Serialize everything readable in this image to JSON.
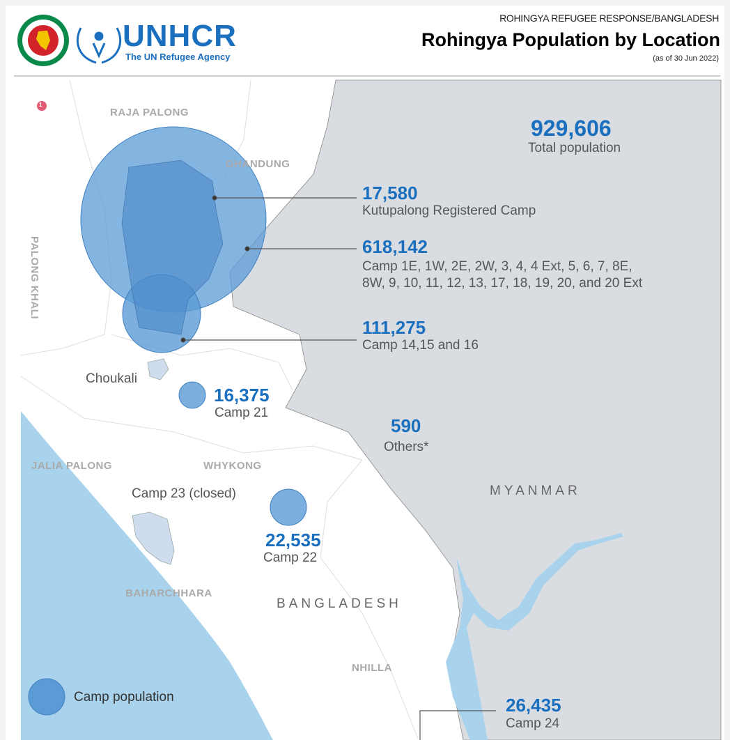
{
  "header": {
    "subtitle": "ROHINGYA REFUGEE RESPONSE/BANGLADESH",
    "title": "Rohingya Population by Location",
    "date": "(as of 30 Jun  2022)"
  },
  "logos": {
    "unhcr": "UNHCR",
    "unhcr_tagline": "The UN Refugee Agency",
    "gov_emblem": "Government of Bangladesh emblem"
  },
  "colors": {
    "accent": "#1a6fbf",
    "circle": "#5b9bd5",
    "sea": "#a9d2ec",
    "myanmar": "#d9dde1",
    "closed_camp": "#cfdcee"
  },
  "total": {
    "value": "929,606",
    "label": "Total population"
  },
  "camps": [
    {
      "value": "17,580",
      "label": "Kutupalong Registered Camp"
    },
    {
      "value": "618,142",
      "label": "Camp 1E, 1W, 2E, 2W, 3, 4, 4 Ext, 5, 6, 7, 8E,",
      "label2": "8W, 9, 10, 11, 12, 13, 17, 18, 19, 20, and 20 Ext"
    },
    {
      "value": "111,275",
      "label": "Camp 14,15 and 16"
    },
    {
      "value": "16,375",
      "label": "Camp 21"
    },
    {
      "value": "590",
      "label": "Others*"
    },
    {
      "value": "22,535",
      "label": "Camp 22"
    },
    {
      "value": "26,435",
      "label": "Camp 24"
    }
  ],
  "places": {
    "raja_palong": "RAJA PALONG",
    "ghandung": "GHANDUNG",
    "palong_khali": "PALONG KHALI",
    "choukali": "Choukali",
    "jalia_palong": "JALIA PALONG",
    "whykong": "WHYKONG",
    "camp23": "Camp 23 (closed)",
    "baharchhara": "BAHARCHHARA",
    "nhilla": "NHILLA",
    "bangladesh": "BANGLADESH",
    "myanmar": "MYANMAR",
    "marker": "1"
  },
  "legend": {
    "label": "Camp population"
  }
}
